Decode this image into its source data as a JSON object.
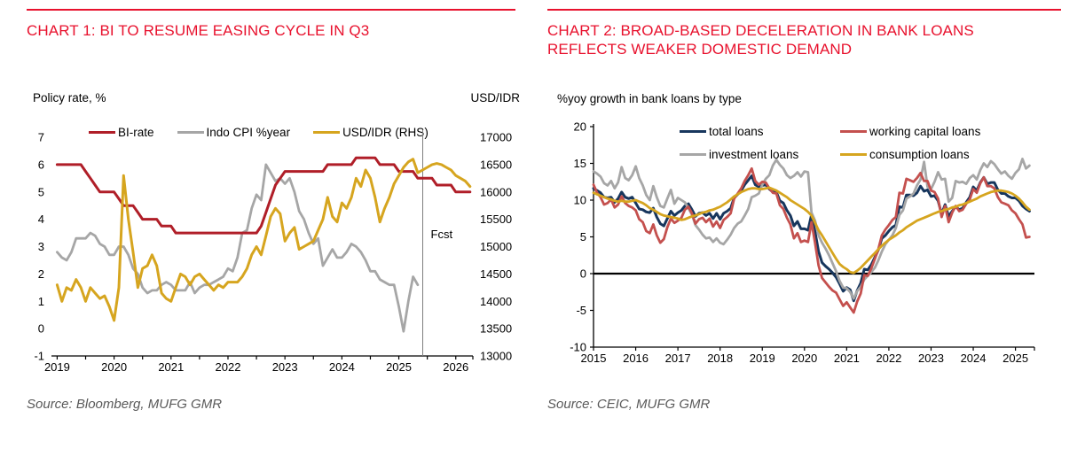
{
  "theme": {
    "accent": "#E8112D",
    "bi_rate_color": "#B01E28",
    "gray_series_color": "#A6A6A6",
    "gold_series_color": "#D6A51F",
    "navy_series_color": "#17365D",
    "working_capital_color": "#C4504E",
    "source_text_color": "#595959"
  },
  "chart1": {
    "title": "CHART 1: BI TO RESUME EASING CYCLE IN Q3",
    "left_axis_title": "Policy rate, %",
    "right_axis_title": "USD/IDR",
    "source": "Source: Bloomberg, MUFG GMR",
    "forecast_label": "Fcst"
  },
  "chart2": {
    "title": "CHART 2: BROAD-BASED DECELERATION IN BANK LOANS REFLECTS WEAKER DOMESTIC DEMAND",
    "subtitle": "%yoy growth in bank loans by type",
    "source": "Source: CEIC, MUFG GMR"
  },
  "chart_data": [
    {
      "type": "line",
      "svg_id": "chart1-svg",
      "legend_id": "legend1",
      "title": "CHART 1: BI TO RESUME EASING CYCLE IN Q3",
      "xlabel": "",
      "ylabel_left": "Policy rate, %",
      "ylabel_right": "USD/IDR",
      "margins": {
        "l": 28,
        "r": 53,
        "t": 25,
        "b": 28
      },
      "x": {
        "min": 2018.9,
        "max": 2026.3,
        "ticks": [
          2019,
          2019.5,
          2020,
          2020.5,
          2021,
          2021.5,
          2022,
          2022.5,
          2023,
          2023.5,
          2024,
          2024.5,
          2025,
          2025.5,
          2026
        ],
        "labels": [
          2019,
          2020,
          2021,
          2022,
          2023,
          2024,
          2025,
          2026
        ],
        "end_tick": true
      },
      "y_left": {
        "min": -1,
        "max": 7,
        "ticks": [
          7,
          6,
          5,
          4,
          3,
          2,
          1,
          0,
          -1
        ]
      },
      "y_right": {
        "min": 13000,
        "max": 17000,
        "ticks": [
          17000,
          16500,
          16000,
          15500,
          15000,
          14500,
          14000,
          13500,
          13000
        ]
      },
      "y_axis_line": false,
      "zero_line": false,
      "grid": false,
      "vline": {
        "x": 2025.42,
        "label": "Fcst",
        "label_y": 3.3
      },
      "legend": [
        {
          "label": "BI-rate",
          "color": "#B01E28"
        },
        {
          "label": "Indo CPI %year",
          "color": "#A6A6A6"
        },
        {
          "label": "USD/IDR (RHS)",
          "color": "#D6A51F"
        }
      ],
      "series": [
        {
          "name": "Indo CPI %year",
          "color": "#A6A6A6",
          "axis": "left",
          "start": 2019.0,
          "step": 0.083333,
          "width": 2.8,
          "values": [
            2.8,
            2.6,
            2.5,
            2.8,
            3.3,
            3.3,
            3.3,
            3.5,
            3.4,
            3.1,
            3,
            2.7,
            2.7,
            3,
            3,
            2.7,
            2.2,
            2,
            1.5,
            1.3,
            1.4,
            1.4,
            1.6,
            1.7,
            1.6,
            1.4,
            1.4,
            1.4,
            1.7,
            1.3,
            1.5,
            1.6,
            1.6,
            1.7,
            1.8,
            1.9,
            2.2,
            2.1,
            2.6,
            3.5,
            3.6,
            4.4,
            4.9,
            4.7,
            6,
            5.7,
            5.4,
            5.5,
            5.3,
            5.5,
            5,
            4.3,
            4,
            3.5,
            3.1,
            3.3,
            2.3,
            2.6,
            2.9,
            2.6,
            2.6,
            2.8,
            3.1,
            3,
            2.8,
            2.5,
            2.1,
            2.1,
            1.8,
            1.7,
            1.6,
            1.6,
            0.8,
            -0.1,
            1,
            1.9,
            1.6
          ]
        },
        {
          "name": "BI-rate",
          "color": "#B01E28",
          "axis": "left",
          "start": 2019.0,
          "step": 0.083333,
          "width": 3,
          "values": [
            6,
            6,
            6,
            6,
            6,
            6,
            5.75,
            5.5,
            5.25,
            5,
            5,
            5,
            5,
            4.75,
            4.5,
            4.5,
            4.5,
            4.25,
            4,
            4,
            4,
            4,
            3.75,
            3.75,
            3.75,
            3.5,
            3.5,
            3.5,
            3.5,
            3.5,
            3.5,
            3.5,
            3.5,
            3.5,
            3.5,
            3.5,
            3.5,
            3.5,
            3.5,
            3.5,
            3.5,
            3.5,
            3.5,
            3.75,
            4.25,
            4.75,
            5.25,
            5.5,
            5.75,
            5.75,
            5.75,
            5.75,
            5.75,
            5.75,
            5.75,
            5.75,
            5.75,
            6,
            6,
            6,
            6,
            6,
            6,
            6.25,
            6.25,
            6.25,
            6.25,
            6.25,
            6,
            6,
            6,
            6,
            5.75,
            5.75,
            5.75,
            5.75,
            5.5,
            5.5,
            5.5,
            5.5,
            5.25,
            5.25,
            5.25,
            5.25,
            5,
            5,
            5,
            5
          ]
        },
        {
          "name": "USD/IDR (RHS)",
          "color": "#D6A51F",
          "axis": "right",
          "start": 2019.0,
          "step": 0.083333,
          "width": 3,
          "values": [
            14300,
            14000,
            14250,
            14200,
            14400,
            14250,
            14000,
            14250,
            14150,
            14050,
            14100,
            13900,
            13650,
            14250,
            16300,
            15500,
            14900,
            14250,
            14600,
            14650,
            14850,
            14650,
            14150,
            14050,
            14000,
            14250,
            14500,
            14450,
            14300,
            14450,
            14500,
            14400,
            14300,
            14200,
            14300,
            14250,
            14350,
            14350,
            14350,
            14450,
            14600,
            14850,
            15000,
            14850,
            15200,
            15550,
            15700,
            15600,
            15100,
            15250,
            15350,
            14950,
            15000,
            15050,
            15100,
            15300,
            15500,
            15900,
            15550,
            15450,
            15800,
            15700,
            15900,
            16250,
            16100,
            16400,
            16250,
            15900,
            15450,
            15700,
            15900,
            16150,
            16300,
            16450,
            16550,
            16600,
            16350,
            16400,
            16450,
            16500,
            16520,
            16500,
            16450,
            16400,
            16300,
            16250,
            16200,
            16100
          ]
        }
      ],
      "source": "Source: Bloomberg, MUFG GMR"
    },
    {
      "type": "line",
      "svg_id": "chart2-svg",
      "legend_id": "legend2",
      "title": "CHART 2: BROAD-BASED DECELERATION IN BANK LOANS REFLECTS WEAKER DOMESTIC DEMAND",
      "subtitle": "%yoy growth in bank loans by type",
      "margins": {
        "l": 52,
        "r": 30,
        "t": 25,
        "b": 26
      },
      "x": {
        "min": 2015,
        "max": 2025.45,
        "ticks": [
          2015,
          2016,
          2017,
          2018,
          2019,
          2020,
          2021,
          2022,
          2023,
          2024,
          2025
        ],
        "labels": [
          2015,
          2016,
          2017,
          2018,
          2019,
          2020,
          2021,
          2022,
          2023,
          2024,
          2025
        ],
        "end_tick": true
      },
      "y_left": {
        "min": -10,
        "max": 20,
        "ticks": [
          20,
          15,
          10,
          5,
          0,
          -5,
          -10
        ]
      },
      "y_axis_line": true,
      "zero_line": true,
      "grid": false,
      "legend": [
        {
          "label": "total loans",
          "color": "#17365D"
        },
        {
          "label": "working capital loans",
          "color": "#C4504E"
        },
        {
          "label": "investment loans",
          "color": "#A6A6A6"
        },
        {
          "label": "consumption loans",
          "color": "#D6A51F"
        }
      ],
      "series": [
        {
          "name": "total loans",
          "color": "#17365D",
          "axis": "left",
          "start": 2015.0,
          "step": 0.083333,
          "width": 3,
          "values": [
            11.6,
            11.3,
            11,
            10.4,
            10.3,
            10.4,
            9.7,
            10.2,
            11.1,
            10.4,
            10.2,
            10.4,
            9.6,
            8.8,
            8.7,
            8.4,
            8.3,
            8.9,
            7.7,
            6.8,
            6.5,
            7.5,
            8.5,
            7.9,
            8.3,
            8.6,
            9.2,
            9.5,
            8.7,
            7.8,
            8.2,
            8.3,
            7.9,
            8.2,
            7.5,
            8.2,
            7.4,
            8.2,
            8.5,
            8.9,
            10.3,
            10.8,
            11.3,
            12.1,
            12.7,
            13.3,
            12.1,
            11.8,
            12,
            12.1,
            11.5,
            11.1,
            11.1,
            9.9,
            9.6,
            8.6,
            7.9,
            6.5,
            7.1,
            6.1,
            6.1,
            5.9,
            8,
            5.7,
            3,
            1.5,
            1,
            0.6,
            0.1,
            -0.5,
            -1.4,
            -2.4,
            -1.9,
            -2.2,
            -3.7,
            -2.3,
            -1.3,
            0.6,
            0.5,
            1.2,
            2.2,
            3.2,
            4.8,
            5.2,
            5.8,
            6.3,
            6.6,
            9.1,
            9,
            10.7,
            10.7,
            10.6,
            11,
            11.9,
            11.2,
            11.4,
            10.5,
            10.6,
            9.9,
            8.1,
            9.4,
            7.8,
            8.5,
            9.1,
            8.7,
            8.9,
            9.7,
            10.4,
            11.8,
            11.3,
            12.4,
            13.1,
            12.2,
            12.4,
            12.4,
            11.4,
            10.9,
            10.9,
            10.5,
            10.3,
            10.3,
            9.9,
            9.2,
            8.8,
            8.5
          ]
        },
        {
          "name": "investment loans",
          "color": "#A6A6A6",
          "axis": "left",
          "start": 2015.0,
          "step": 0.083333,
          "width": 2.8,
          "values": [
            13.9,
            13.6,
            13.2,
            12.3,
            12,
            12.6,
            11.6,
            12.4,
            14.5,
            13,
            12.7,
            13.4,
            14.6,
            13,
            12,
            10.7,
            10,
            11.9,
            10.4,
            9.2,
            9,
            10.2,
            11.4,
            9.5,
            10.3,
            10,
            9.7,
            8.9,
            8,
            6.6,
            6,
            5.3,
            4.8,
            4.9,
            4.3,
            4.8,
            4.2,
            4,
            4.6,
            5.3,
            6.2,
            6.8,
            7.1,
            7.9,
            8.8,
            10.4,
            10.6,
            10.9,
            12.1,
            12.9,
            13.4,
            14.7,
            15.5,
            14.8,
            14.3,
            13.4,
            13,
            13.3,
            13.8,
            13.2,
            13.9,
            13.8,
            8.3,
            7.2,
            5.2,
            4.2,
            3.4,
            2.5,
            1.4,
            0.3,
            -1,
            -1.9,
            -2,
            -2.5,
            -3.4,
            -2.4,
            -1.8,
            -0.8,
            -0.3,
            0.2,
            0.8,
            1.8,
            3,
            4,
            4.6,
            5.2,
            6.2,
            8,
            8.6,
            10.2,
            10.5,
            10.9,
            12,
            12.8,
            15.2,
            11.8,
            11.5,
            12.5,
            13.8,
            12.8,
            12.9,
            9.8,
            10.3,
            12.6,
            12.4,
            12.5,
            12.2,
            13,
            13.4,
            12.8,
            14.1,
            15,
            14.5,
            15.3,
            14.9,
            14.2,
            13.6,
            13.9,
            13.3,
            12.9,
            13.7,
            14.2,
            15.6,
            14.3,
            14.7
          ]
        },
        {
          "name": "working capital loans",
          "color": "#C4504E",
          "axis": "left",
          "start": 2015.0,
          "step": 0.083333,
          "width": 2.8,
          "values": [
            12.1,
            11,
            10.4,
            9.4,
            9.6,
            10.1,
            9,
            9.4,
            10.5,
            9.6,
            9.2,
            9,
            8.6,
            7.4,
            7,
            5.8,
            5.5,
            6.7,
            5.2,
            4.2,
            4.7,
            6.3,
            7.5,
            6.9,
            7.2,
            7.6,
            8.7,
            9.1,
            8.2,
            6.8,
            7.4,
            7.6,
            7,
            7.5,
            6.4,
            7.1,
            6.2,
            7.3,
            7.7,
            8.2,
            10.2,
            10.9,
            11.6,
            12.6,
            13.4,
            14.3,
            12.6,
            12.1,
            12.5,
            12.4,
            11.6,
            11,
            10.9,
            9.3,
            8.8,
            7.6,
            6.7,
            4.8,
            5.5,
            4.3,
            4.5,
            4.3,
            7,
            4.2,
            1.1,
            -0.6,
            -1.2,
            -1.8,
            -2.3,
            -2.6,
            -3.5,
            -4.4,
            -3.9,
            -4.6,
            -5.3,
            -3.8,
            -2.7,
            -0.2,
            -0.3,
            0.7,
            2,
            3.3,
            5.2,
            6,
            6.6,
            7.3,
            7.7,
            11,
            10.9,
            12.9,
            12.7,
            12.5,
            13,
            13.7,
            12.6,
            12.6,
            11.3,
            11.1,
            10.2,
            7.7,
            9.2,
            7,
            8.3,
            9.2,
            8.5,
            8.7,
            9.5,
            10.1,
            11.5,
            11,
            12.3,
            13.1,
            11.9,
            11.9,
            11.6,
            10.4,
            9.7,
            9.5,
            9.3,
            8.6,
            8.2,
            7.4,
            6.7,
            4.9,
            5
          ]
        },
        {
          "name": "consumption loans",
          "color": "#D6A51F",
          "axis": "left",
          "start": 2015.0,
          "step": 0.083333,
          "width": 2.8,
          "values": [
            11,
            10.8,
            10.6,
            10.4,
            10.2,
            10.1,
            9.9,
            9.8,
            9.9,
            9.8,
            9.8,
            9.9,
            10,
            9.8,
            9.6,
            9.3,
            8.9,
            8.7,
            8.4,
            8.1,
            7.9,
            7.8,
            7.7,
            7.6,
            7.5,
            7.3,
            7.4,
            7.6,
            7.8,
            7.9,
            8.1,
            8.3,
            8.4,
            8.6,
            8.7,
            8.9,
            9.1,
            9.4,
            9.7,
            10.1,
            10.5,
            10.8,
            11.1,
            11.3,
            11.5,
            11.6,
            11.6,
            11.5,
            11.5,
            11.6,
            11.7,
            11.5,
            11.3,
            11,
            10.7,
            10.4,
            10,
            9.7,
            9.4,
            9.1,
            8.8,
            8.4,
            7.9,
            6.9,
            5.9,
            5.2,
            4.4,
            3.6,
            2.8,
            2,
            1.3,
            0.9,
            0.6,
            0.2,
            0.1,
            0.4,
            0.8,
            1.3,
            1.8,
            2.3,
            2.8,
            3.3,
            3.8,
            4.2,
            4.6,
            4.9,
            5.2,
            5.6,
            5.9,
            6.3,
            6.6,
            6.9,
            7.2,
            7.4,
            7.6,
            7.8,
            8,
            8.2,
            8.4,
            8.5,
            8.7,
            8.8,
            9,
            9.1,
            9.3,
            9.4,
            9.6,
            9.8,
            10,
            10.2,
            10.5,
            10.7,
            10.9,
            11.1,
            11.2,
            11.3,
            11.3,
            11.2,
            11.1,
            10.9,
            10.6,
            10.2,
            9.7,
            9.1,
            8.7
          ]
        }
      ],
      "source": "Source: CEIC, MUFG GMR"
    }
  ]
}
